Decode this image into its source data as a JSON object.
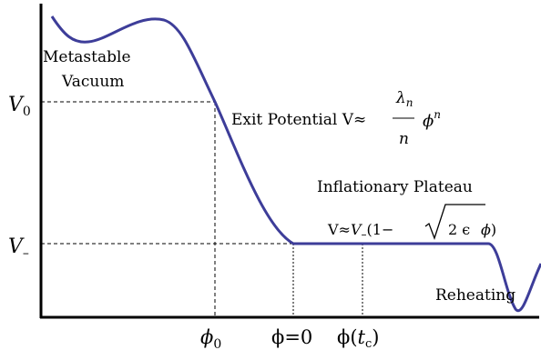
{
  "colors": {
    "curve": "#3d3d99",
    "axis": "#000000",
    "guide": "#000000"
  },
  "y_labels": {
    "v0_main": "V",
    "v0_sub": "0",
    "vminus_main": "V",
    "vminus_sub": "–"
  },
  "x_labels": {
    "phi0_main": "ϕ",
    "phi0_sub": "0",
    "phi_zero": "ϕ=0",
    "phi_tc_a": "ϕ(",
    "phi_tc_t": "t",
    "phi_tc_c": "c",
    "phi_tc_b": ")"
  },
  "annotations": {
    "metastable_1": "Metastable",
    "metastable_2": "Vacuum",
    "exit_text": "Exit Potential V≈",
    "exit_lambda": "λ",
    "exit_lambda_sub": "n",
    "exit_den": "n",
    "exit_phi": "ϕ",
    "exit_pow": "n",
    "plateau_title": "Inflationary Plateau",
    "plateau_v": "V≈",
    "plateau_vm": "V",
    "plateau_vm_sub": "–",
    "plateau_open": "(1−",
    "plateau_root": "2 ϵ",
    "plateau_phi": "ϕ",
    "plateau_close": ")",
    "reheating": "Reheating"
  }
}
